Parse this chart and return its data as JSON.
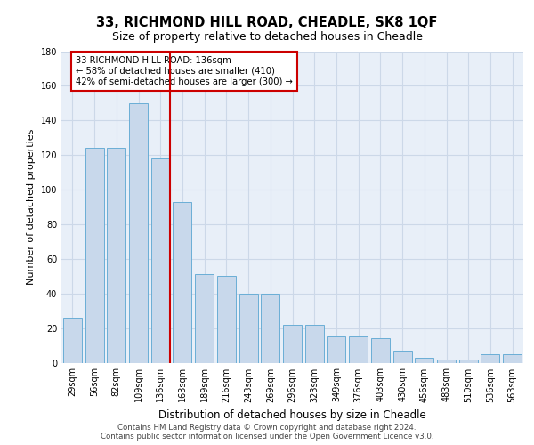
{
  "title1": "33, RICHMOND HILL ROAD, CHEADLE, SK8 1QF",
  "title2": "Size of property relative to detached houses in Cheadle",
  "xlabel": "Distribution of detached houses by size in Cheadle",
  "ylabel": "Number of detached properties",
  "categories": [
    "29sqm",
    "56sqm",
    "82sqm",
    "109sqm",
    "136sqm",
    "163sqm",
    "189sqm",
    "216sqm",
    "243sqm",
    "269sqm",
    "296sqm",
    "323sqm",
    "349sqm",
    "376sqm",
    "403sqm",
    "430sqm",
    "456sqm",
    "483sqm",
    "510sqm",
    "536sqm",
    "563sqm"
  ],
  "values": [
    26,
    124,
    124,
    150,
    118,
    93,
    51,
    50,
    40,
    40,
    22,
    22,
    15,
    15,
    14,
    7,
    3,
    2,
    2,
    5,
    5
  ],
  "bar_color": "#c8d8eb",
  "bar_edge_color": "#6aaed6",
  "vline_color": "#cc0000",
  "annotation_text": "33 RICHMOND HILL ROAD: 136sqm\n← 58% of detached houses are smaller (410)\n42% of semi-detached houses are larger (300) →",
  "annotation_box_color": "white",
  "annotation_edge_color": "#cc0000",
  "grid_color": "#ccd8e8",
  "background_color": "#e8eff8",
  "footer_line1": "Contains HM Land Registry data © Crown copyright and database right 2024.",
  "footer_line2": "Contains public sector information licensed under the Open Government Licence v3.0.",
  "ylim": [
    0,
    180
  ],
  "yticks": [
    0,
    20,
    40,
    60,
    80,
    100,
    120,
    140,
    160,
    180
  ]
}
